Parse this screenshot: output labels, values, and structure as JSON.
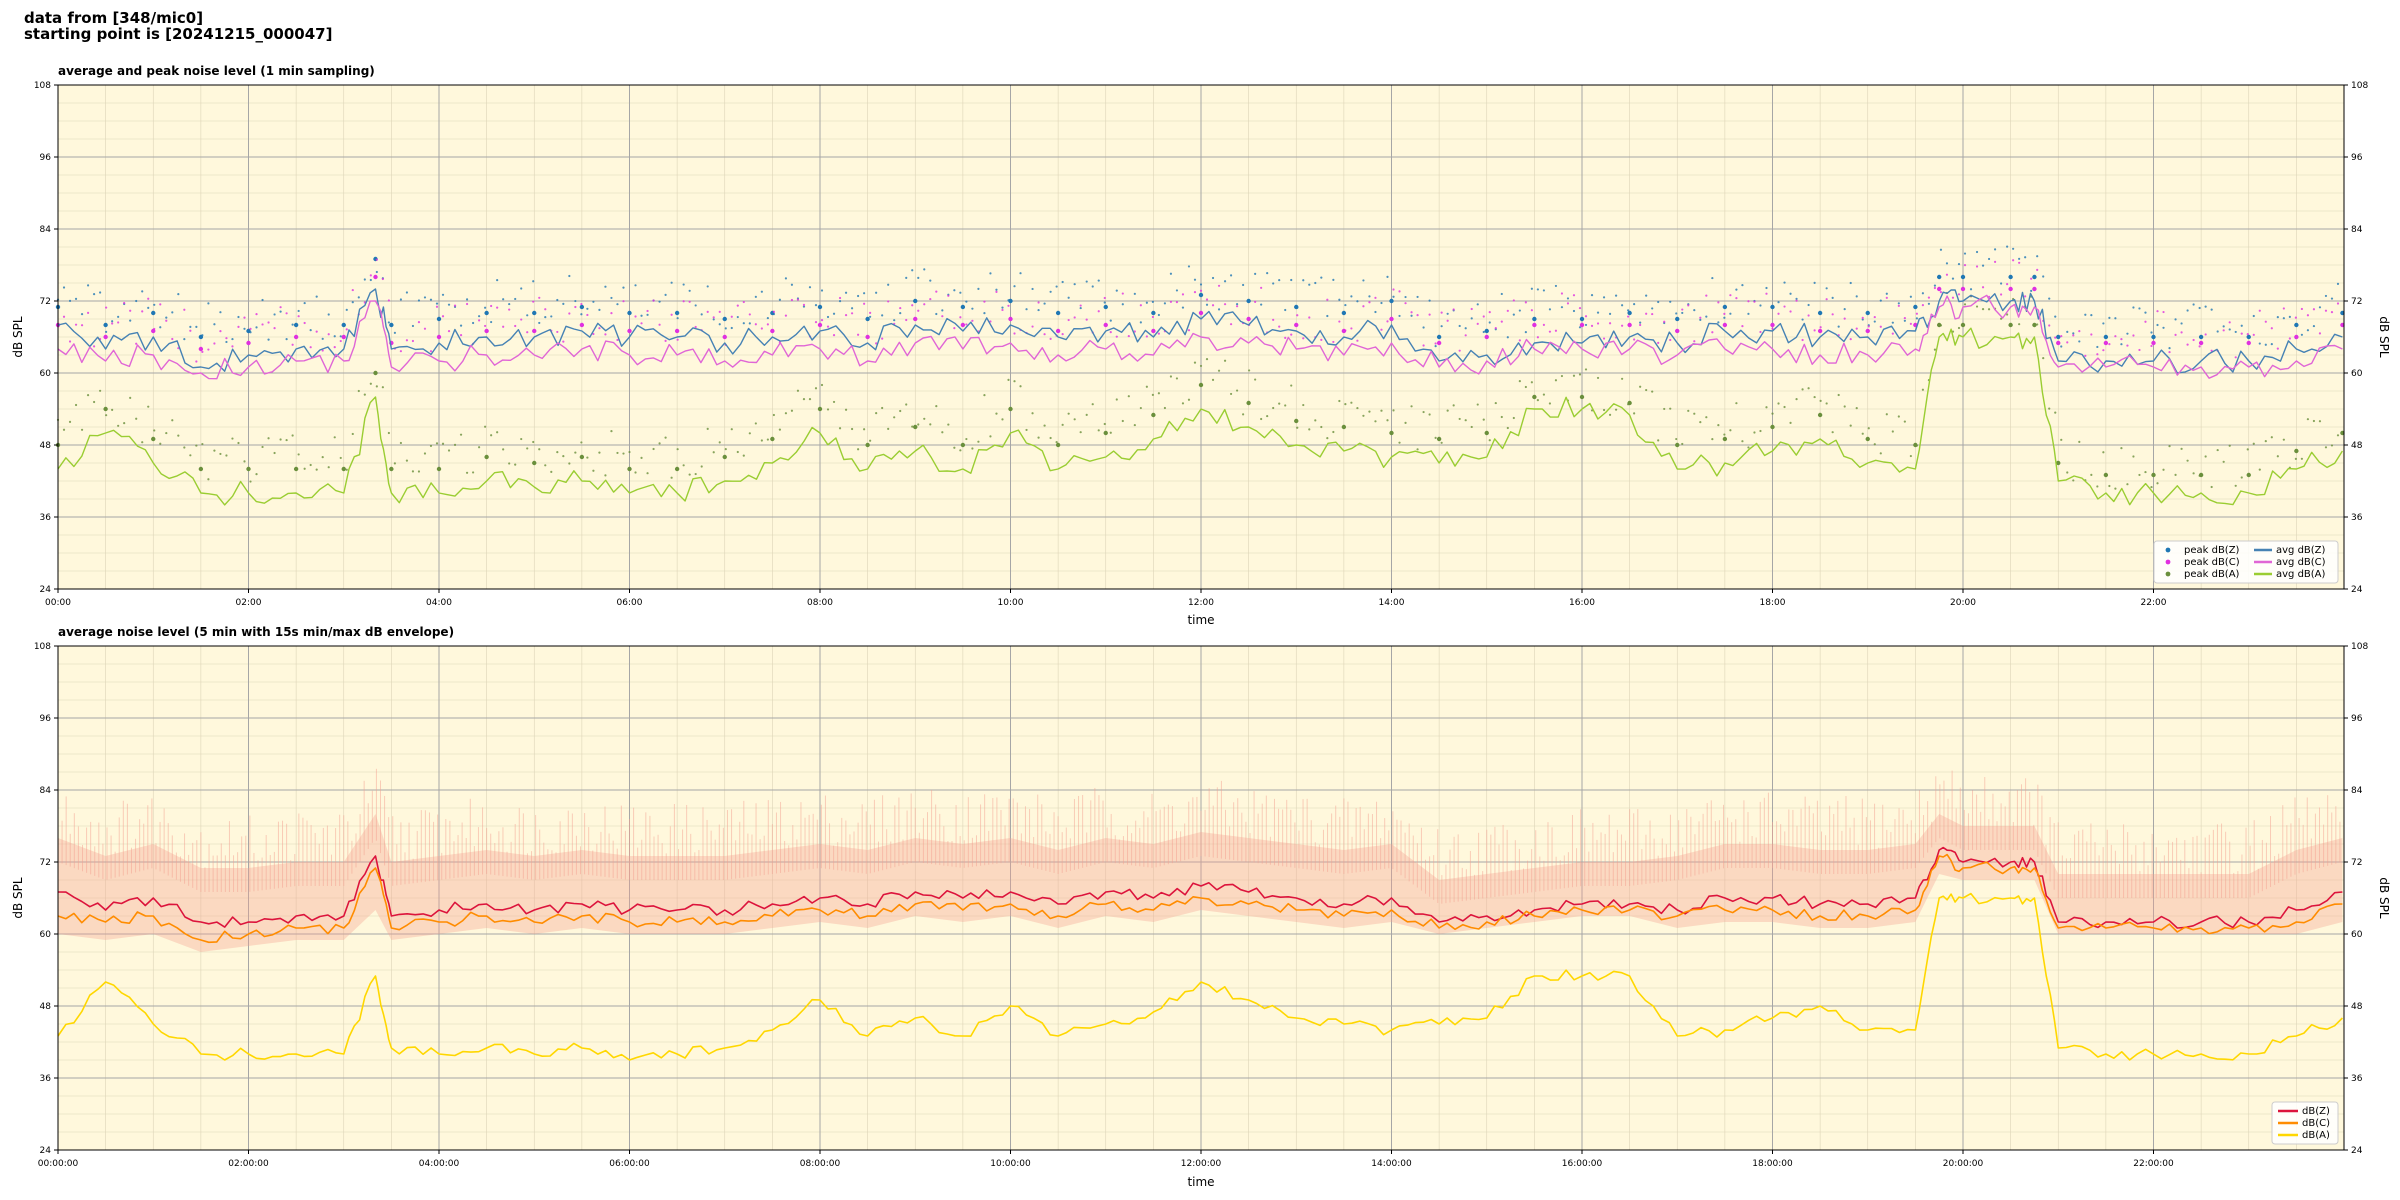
{
  "header": {
    "line1": "data from [348/mic0]",
    "line2": "starting point is [20241215_000047]"
  },
  "colors": {
    "bg": "#fff8dc",
    "peak_z": "#1f77b4",
    "peak_c": "#e030e0",
    "peak_a": "#6a8f3c",
    "avg_z": "#4682b4",
    "avg_c": "#e066d6",
    "avg_a": "#9acd32",
    "env_z": "#dc143c",
    "env_c": "#ff8c00",
    "env_a": "#ffd700",
    "band": "#f4a090"
  },
  "chart_data": [
    {
      "type": "line",
      "title": "average and peak noise level (1 min sampling)",
      "xlabel": "time",
      "ylabel": "dB SPL",
      "ylim": [
        24,
        108
      ],
      "xlim_hours": [
        0,
        24
      ],
      "yticks": [
        "24",
        "36",
        "48",
        "60",
        "72",
        "84",
        "96",
        "108"
      ],
      "xticks": [
        "00:00",
        "02:00",
        "04:00",
        "06:00",
        "08:00",
        "10:00",
        "12:00",
        "14:00",
        "16:00",
        "18:00",
        "20:00",
        "22:00"
      ],
      "grid": true,
      "legend_position": "lower-right",
      "legend": [
        {
          "label": "peak dB(Z)",
          "kind": "dot",
          "color": "peak_z"
        },
        {
          "label": "peak dB(C)",
          "kind": "dot",
          "color": "peak_c"
        },
        {
          "label": "peak dB(A)",
          "kind": "dot",
          "color": "peak_a"
        },
        {
          "label": "avg dB(Z)",
          "kind": "line",
          "color": "avg_z"
        },
        {
          "label": "avg dB(C)",
          "kind": "line",
          "color": "avg_c"
        },
        {
          "label": "avg dB(A)",
          "kind": "line",
          "color": "avg_a"
        }
      ],
      "x": [
        "00:00",
        "00:30",
        "01:00",
        "01:30",
        "02:00",
        "02:30",
        "03:00",
        "03:20",
        "03:30",
        "04:00",
        "04:30",
        "05:00",
        "05:30",
        "06:00",
        "06:30",
        "07:00",
        "07:30",
        "08:00",
        "08:30",
        "09:00",
        "09:30",
        "10:00",
        "10:30",
        "11:00",
        "11:30",
        "12:00",
        "12:30",
        "13:00",
        "13:30",
        "14:00",
        "14:30",
        "15:00",
        "15:30",
        "16:00",
        "16:30",
        "17:00",
        "17:30",
        "18:00",
        "18:30",
        "19:00",
        "19:30",
        "19:45",
        "20:00",
        "20:30",
        "20:45",
        "21:00",
        "21:30",
        "22:00",
        "22:30",
        "23:00",
        "23:30",
        "23:59"
      ],
      "series": [
        {
          "name": "avg dB(Z)",
          "values": [
            68,
            64,
            66,
            61,
            63,
            64,
            64,
            74,
            64,
            65,
            66,
            66,
            67,
            66,
            66,
            65,
            66,
            67,
            65,
            68,
            67,
            68,
            66,
            67,
            66,
            69,
            68,
            67,
            66,
            68,
            62,
            63,
            65,
            65,
            66,
            65,
            67,
            67,
            66,
            66,
            67,
            72,
            72,
            72,
            72,
            62,
            62,
            62,
            62,
            62,
            64,
            66
          ]
        },
        {
          "name": "avg dB(C)",
          "values": [
            64,
            62,
            63,
            60,
            61,
            62,
            62,
            72,
            61,
            62,
            63,
            63,
            64,
            63,
            63,
            62,
            63,
            64,
            62,
            65,
            64,
            65,
            63,
            64,
            63,
            66,
            65,
            64,
            63,
            65,
            61,
            62,
            64,
            64,
            64,
            63,
            64,
            64,
            63,
            63,
            64,
            71,
            71,
            71,
            71,
            61,
            61,
            61,
            61,
            61,
            62,
            64
          ]
        },
        {
          "name": "avg dB(A)",
          "values": [
            44,
            50,
            45,
            40,
            40,
            40,
            40,
            56,
            40,
            40,
            42,
            41,
            42,
            40,
            40,
            42,
            45,
            50,
            44,
            47,
            44,
            50,
            44,
            46,
            49,
            54,
            51,
            48,
            47,
            46,
            45,
            46,
            54,
            54,
            53,
            44,
            45,
            47,
            49,
            45,
            44,
            66,
            66,
            66,
            66,
            42,
            40,
            40,
            40,
            40,
            44,
            47
          ]
        },
        {
          "name": "peak dB(Z)",
          "values": [
            71,
            68,
            70,
            66,
            67,
            68,
            68,
            79,
            68,
            69,
            70,
            70,
            71,
            70,
            70,
            69,
            70,
            71,
            69,
            72,
            71,
            72,
            70,
            71,
            70,
            73,
            72,
            71,
            70,
            72,
            66,
            67,
            69,
            69,
            70,
            69,
            71,
            71,
            70,
            70,
            71,
            76,
            76,
            76,
            76,
            66,
            66,
            66,
            66,
            66,
            68,
            70
          ]
        },
        {
          "name": "peak dB(C)",
          "values": [
            68,
            66,
            67,
            64,
            65,
            66,
            66,
            76,
            65,
            66,
            67,
            67,
            68,
            67,
            67,
            66,
            67,
            68,
            66,
            69,
            68,
            69,
            67,
            68,
            67,
            70,
            69,
            68,
            67,
            69,
            65,
            66,
            68,
            68,
            68,
            67,
            68,
            68,
            67,
            67,
            68,
            74,
            74,
            74,
            74,
            65,
            65,
            65,
            65,
            65,
            66,
            68
          ]
        },
        {
          "name": "peak dB(A)",
          "values": [
            48,
            54,
            49,
            44,
            44,
            44,
            44,
            60,
            44,
            44,
            46,
            45,
            46,
            44,
            44,
            46,
            49,
            54,
            48,
            51,
            48,
            54,
            48,
            50,
            53,
            58,
            55,
            52,
            51,
            50,
            49,
            50,
            56,
            56,
            55,
            48,
            49,
            51,
            53,
            49,
            48,
            68,
            68,
            68,
            68,
            45,
            43,
            43,
            43,
            43,
            47,
            50
          ]
        }
      ]
    },
    {
      "type": "line",
      "title": "average noise level (5 min with 15s min/max dB envelope)",
      "xlabel": "time",
      "ylabel": "dB SPL",
      "ylim": [
        24,
        108
      ],
      "xlim_hours": [
        0,
        24
      ],
      "yticks": [
        "24",
        "36",
        "48",
        "60",
        "72",
        "84",
        "96",
        "108"
      ],
      "xticks": [
        "00:00:00",
        "02:00:00",
        "04:00:00",
        "06:00:00",
        "08:00:00",
        "10:00:00",
        "12:00:00",
        "14:00:00",
        "16:00:00",
        "18:00:00",
        "20:00:00",
        "22:00:00"
      ],
      "grid": true,
      "legend_position": "lower-right",
      "legend": [
        {
          "label": "dB(Z)",
          "kind": "line",
          "color": "env_z"
        },
        {
          "label": "dB(C)",
          "kind": "line",
          "color": "env_c"
        },
        {
          "label": "dB(A)",
          "kind": "line",
          "color": "env_a"
        }
      ],
      "x": [
        "00:00",
        "00:30",
        "01:00",
        "01:30",
        "02:00",
        "02:30",
        "03:00",
        "03:20",
        "03:30",
        "04:00",
        "04:30",
        "05:00",
        "05:30",
        "06:00",
        "06:30",
        "07:00",
        "07:30",
        "08:00",
        "08:30",
        "09:00",
        "09:30",
        "10:00",
        "10:30",
        "11:00",
        "11:30",
        "12:00",
        "12:30",
        "13:00",
        "13:30",
        "14:00",
        "14:30",
        "15:00",
        "15:30",
        "16:00",
        "16:30",
        "17:00",
        "17:30",
        "18:00",
        "18:30",
        "19:00",
        "19:30",
        "19:45",
        "20:00",
        "20:30",
        "20:45",
        "21:00",
        "21:30",
        "22:00",
        "22:30",
        "23:00",
        "23:30",
        "23:59"
      ],
      "series": [
        {
          "name": "dB(Z)",
          "values": [
            67,
            64,
            66,
            62,
            62,
            63,
            63,
            73,
            63,
            64,
            65,
            64,
            65,
            64,
            64,
            64,
            65,
            66,
            65,
            67,
            66,
            67,
            65,
            67,
            66,
            68,
            67,
            66,
            65,
            66,
            62,
            63,
            64,
            65,
            65,
            64,
            66,
            66,
            65,
            65,
            66,
            74,
            72,
            72,
            72,
            62,
            62,
            62,
            62,
            62,
            64,
            67
          ]
        },
        {
          "name": "dB(C)",
          "values": [
            63,
            62,
            63,
            59,
            60,
            61,
            61,
            71,
            61,
            62,
            63,
            62,
            63,
            62,
            62,
            62,
            63,
            64,
            63,
            65,
            64,
            65,
            63,
            65,
            64,
            66,
            65,
            64,
            63,
            64,
            61,
            62,
            63,
            64,
            64,
            63,
            64,
            64,
            63,
            63,
            64,
            73,
            71,
            71,
            71,
            61,
            61,
            61,
            61,
            61,
            62,
            65
          ]
        },
        {
          "name": "dB(A)",
          "values": [
            43,
            52,
            45,
            40,
            40,
            40,
            40,
            53,
            41,
            40,
            41,
            40,
            41,
            39,
            40,
            41,
            44,
            49,
            43,
            46,
            43,
            48,
            43,
            45,
            47,
            52,
            49,
            46,
            45,
            44,
            45,
            46,
            53,
            53,
            53,
            43,
            44,
            46,
            48,
            44,
            44,
            66,
            66,
            66,
            66,
            41,
            40,
            40,
            40,
            40,
            43,
            46
          ]
        },
        {
          "name": "envelope max",
          "values": [
            76,
            73,
            75,
            71,
            71,
            72,
            72,
            80,
            72,
            73,
            74,
            73,
            74,
            73,
            73,
            73,
            74,
            75,
            74,
            76,
            75,
            76,
            74,
            76,
            75,
            77,
            76,
            75,
            74,
            75,
            69,
            70,
            71,
            72,
            72,
            73,
            75,
            75,
            74,
            74,
            75,
            80,
            78,
            78,
            78,
            70,
            70,
            70,
            70,
            70,
            74,
            76
          ]
        },
        {
          "name": "envelope min",
          "values": [
            60,
            59,
            60,
            57,
            58,
            59,
            59,
            64,
            59,
            60,
            61,
            60,
            61,
            60,
            60,
            60,
            61,
            62,
            61,
            63,
            62,
            63,
            61,
            63,
            62,
            64,
            63,
            62,
            61,
            62,
            60,
            61,
            62,
            63,
            63,
            61,
            62,
            62,
            61,
            61,
            62,
            70,
            69,
            69,
            69,
            60,
            60,
            60,
            60,
            60,
            60,
            62
          ]
        }
      ]
    }
  ]
}
